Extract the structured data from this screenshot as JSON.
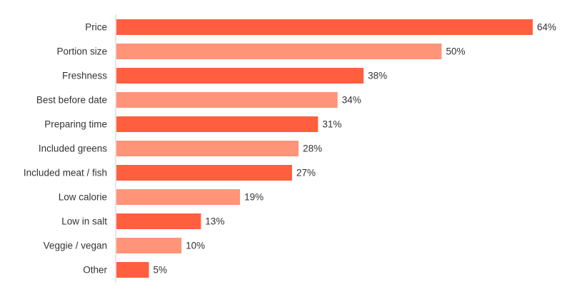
{
  "chart_data": {
    "type": "bar",
    "orientation": "horizontal",
    "categories": [
      "Price",
      "Portion size",
      "Freshness",
      "Best before date",
      "Preparing time",
      "Included greens",
      "Included meat / fish",
      "Low calorie",
      "Low in salt",
      "Veggie / vegan",
      "Other"
    ],
    "values": [
      64,
      50,
      38,
      34,
      31,
      28,
      27,
      19,
      13,
      10,
      5
    ],
    "value_labels": [
      "64%",
      "50%",
      "38%",
      "34%",
      "31%",
      "28%",
      "27%",
      "19%",
      "13%",
      "10%",
      "5%"
    ],
    "unit": "%",
    "xlim": [
      0,
      64
    ],
    "grid": false,
    "legend": "none",
    "colors": {
      "primary": "#FF5F3F",
      "alternate": "#FF9478",
      "text": "#333333",
      "axis": "#cccccc"
    }
  }
}
